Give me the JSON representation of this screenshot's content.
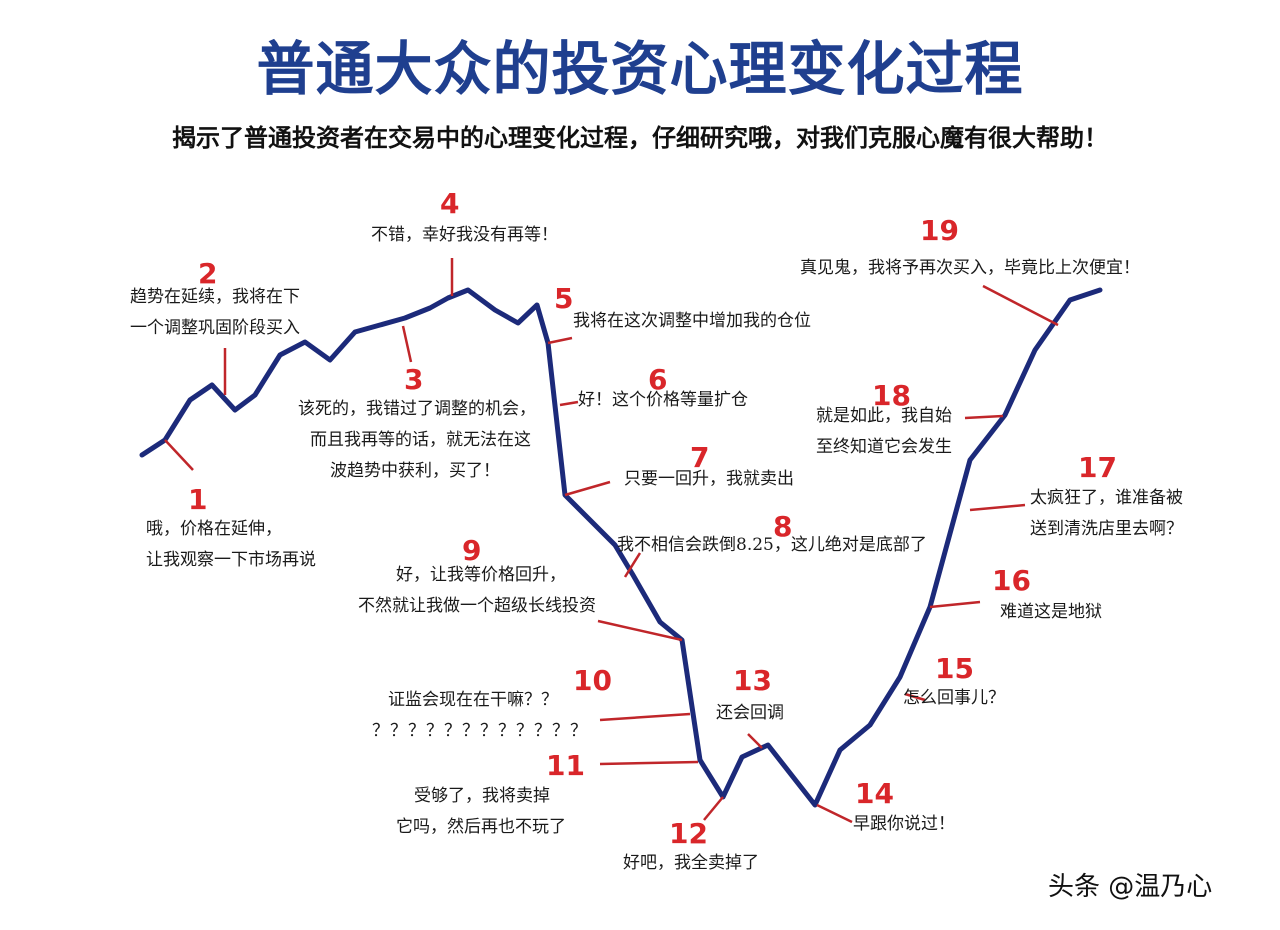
{
  "title": "普通大众的投资心理变化过程",
  "subtitle": "揭示了普通投资者在交易中的心理变化过程，仔细研究哦，对我们克服心魔有很大帮助！",
  "colors": {
    "title": "#1f3f8f",
    "line": "#1c2a7a",
    "number": "#d9262a",
    "pointer": "#c0262a",
    "text": "#1a1a1a"
  },
  "stages": [
    {
      "number": "1",
      "lines": [
        "哦，价格在延伸，",
        "让我观察一下市场再说"
      ]
    },
    {
      "number": "2",
      "lines": [
        "趋势在延续，我将在下",
        "一个调整巩固阶段买入"
      ]
    },
    {
      "number": "3",
      "lines": [
        "该死的，我错过了调整的机会，",
        "而且我再等的话，就无法在这",
        "波趋势中获利，买了！"
      ]
    },
    {
      "number": "4",
      "lines": [
        "不错，幸好我没有再等！"
      ]
    },
    {
      "number": "5",
      "lines": [
        "我将在这次调整中增加我的仓位"
      ]
    },
    {
      "number": "6",
      "lines": [
        "好！这个价格等量扩仓"
      ]
    },
    {
      "number": "7",
      "lines": [
        "只要一回升，我就卖出"
      ]
    },
    {
      "number": "8",
      "lines": [
        "我不相信会跌倒8.25，这儿绝对是底部了"
      ]
    },
    {
      "number": "9",
      "lines": [
        "好，让我等价格回升，",
        "不然就让我做一个超级长线投资"
      ]
    },
    {
      "number": "10",
      "lines": [
        "证监会现在在干嘛？？",
        "？？？？？？？？？？？？"
      ]
    },
    {
      "number": "11",
      "lines": [
        "受够了，我将卖掉",
        "它吗，然后再也不玩了"
      ]
    },
    {
      "number": "12",
      "lines": [
        "好吧，我全卖掉了"
      ]
    },
    {
      "number": "13",
      "lines": [
        "还会回调"
      ]
    },
    {
      "number": "14",
      "lines": [
        "早跟你说过！"
      ]
    },
    {
      "number": "15",
      "lines": [
        "怎么回事儿？"
      ]
    },
    {
      "number": "16",
      "lines": [
        "难道这是地狱"
      ]
    },
    {
      "number": "17",
      "lines": [
        "太疯狂了，谁准备被",
        "送到清洗店里去啊？"
      ]
    },
    {
      "number": "18",
      "lines": [
        "就是如此，我自始",
        "至终知道它会发生"
      ]
    },
    {
      "number": "19",
      "lines": [
        "真见鬼，我将予再次买入，毕竟比上次便宜！"
      ]
    }
  ],
  "watermark": "头条 @温乃心"
}
